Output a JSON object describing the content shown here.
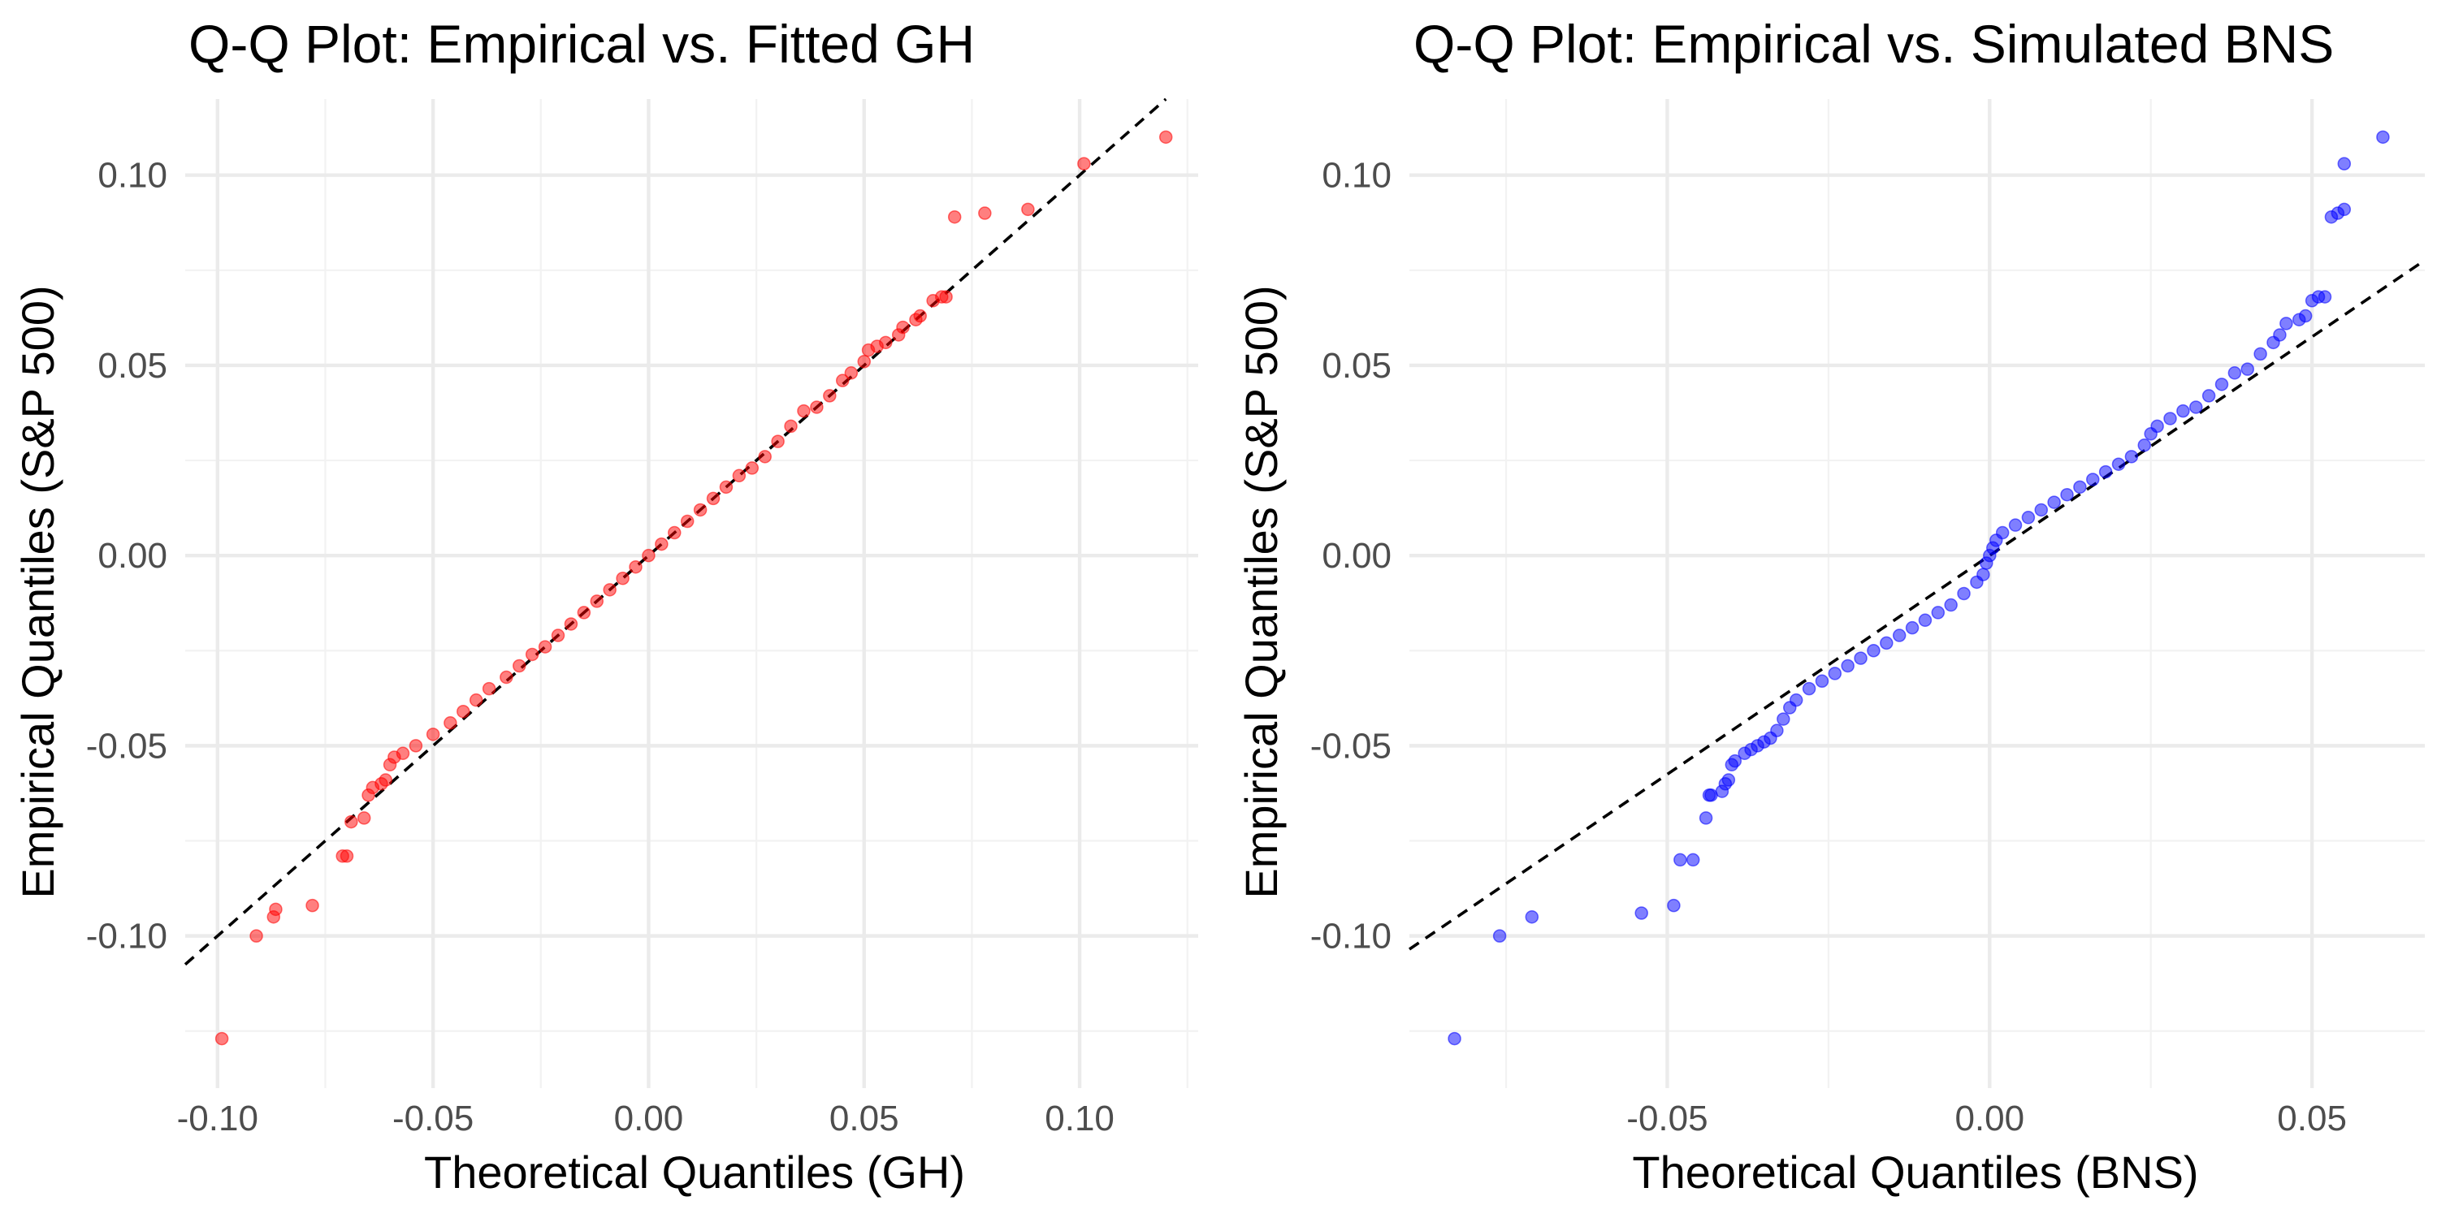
{
  "chart_data": [
    {
      "type": "scatter",
      "title": "Q-Q Plot: Empirical vs. Fitted GH",
      "xlabel": "Theoretical Quantiles (GH)",
      "ylabel": "Empirical Quantiles (S&P 500)",
      "xlim": [
        -0.1075,
        0.1275
      ],
      "ylim": [
        -0.14,
        0.12
      ],
      "x_ticks": [
        -0.1,
        -0.05,
        0.0,
        0.05,
        0.1
      ],
      "x_tick_labels": [
        "-0.10",
        "-0.05",
        "0.00",
        "0.05",
        "0.10"
      ],
      "y_ticks": [
        -0.1,
        -0.05,
        0.0,
        0.05,
        0.1
      ],
      "y_tick_labels": [
        "-0.10",
        "-0.05",
        "0.00",
        "0.05",
        "0.10"
      ],
      "grid": true,
      "point_color": "#ff0000",
      "reference_line": {
        "style": "dashed",
        "color": "#000000",
        "slope": 1.0,
        "intercept": 0.0
      },
      "series": [
        {
          "points": [
            [
              -0.099,
              -0.127
            ],
            [
              -0.091,
              -0.1
            ],
            [
              -0.087,
              -0.095
            ],
            [
              -0.0865,
              -0.093
            ],
            [
              -0.078,
              -0.092
            ],
            [
              -0.071,
              -0.079
            ],
            [
              -0.07,
              -0.079
            ],
            [
              -0.069,
              -0.07
            ],
            [
              -0.066,
              -0.069
            ],
            [
              -0.065,
              -0.063
            ],
            [
              -0.064,
              -0.061
            ],
            [
              -0.062,
              -0.06
            ],
            [
              -0.061,
              -0.059
            ],
            [
              -0.06,
              -0.055
            ],
            [
              -0.059,
              -0.053
            ],
            [
              -0.057,
              -0.052
            ],
            [
              -0.054,
              -0.05
            ],
            [
              -0.05,
              -0.047
            ],
            [
              -0.046,
              -0.044
            ],
            [
              -0.043,
              -0.041
            ],
            [
              -0.04,
              -0.038
            ],
            [
              -0.037,
              -0.035
            ],
            [
              -0.033,
              -0.032
            ],
            [
              -0.03,
              -0.029
            ],
            [
              -0.027,
              -0.026
            ],
            [
              -0.024,
              -0.024
            ],
            [
              -0.021,
              -0.021
            ],
            [
              -0.018,
              -0.018
            ],
            [
              -0.015,
              -0.015
            ],
            [
              -0.012,
              -0.012
            ],
            [
              -0.009,
              -0.009
            ],
            [
              -0.006,
              -0.006
            ],
            [
              -0.003,
              -0.003
            ],
            [
              0.0,
              0.0
            ],
            [
              0.003,
              0.003
            ],
            [
              0.006,
              0.006
            ],
            [
              0.009,
              0.009
            ],
            [
              0.012,
              0.012
            ],
            [
              0.015,
              0.015
            ],
            [
              0.018,
              0.018
            ],
            [
              0.021,
              0.021
            ],
            [
              0.024,
              0.023
            ],
            [
              0.027,
              0.026
            ],
            [
              0.03,
              0.03
            ],
            [
              0.033,
              0.034
            ],
            [
              0.036,
              0.038
            ],
            [
              0.039,
              0.039
            ],
            [
              0.042,
              0.042
            ],
            [
              0.045,
              0.046
            ],
            [
              0.047,
              0.048
            ],
            [
              0.05,
              0.051
            ],
            [
              0.051,
              0.054
            ],
            [
              0.053,
              0.055
            ],
            [
              0.055,
              0.056
            ],
            [
              0.058,
              0.058
            ],
            [
              0.059,
              0.06
            ],
            [
              0.062,
              0.062
            ],
            [
              0.063,
              0.063
            ],
            [
              0.066,
              0.067
            ],
            [
              0.068,
              0.068
            ],
            [
              0.069,
              0.068
            ],
            [
              0.071,
              0.089
            ],
            [
              0.078,
              0.09
            ],
            [
              0.088,
              0.091
            ],
            [
              0.101,
              0.103
            ],
            [
              0.12,
              0.11
            ]
          ]
        }
      ]
    },
    {
      "type": "scatter",
      "title": "Q-Q Plot: Empirical vs. Simulated BNS",
      "xlabel": "Theoretical Quantiles (BNS)",
      "ylabel": "Empirical Quantiles (S&P 500)",
      "xlim": [
        -0.09,
        0.0675
      ],
      "ylim": [
        -0.14,
        0.12
      ],
      "x_ticks": [
        -0.05,
        0.0,
        0.05
      ],
      "x_tick_labels": [
        "-0.05",
        "0.00",
        "0.05"
      ],
      "y_ticks": [
        -0.1,
        -0.05,
        0.0,
        0.05,
        0.1
      ],
      "y_tick_labels": [
        "-0.10",
        "-0.05",
        "0.00",
        "0.05",
        "0.10"
      ],
      "grid": true,
      "point_color": "#0000ff",
      "reference_line": {
        "style": "dashed",
        "color": "#000000",
        "slope": 1.15,
        "intercept": 0.0
      },
      "series": [
        {
          "points": [
            [
              -0.083,
              -0.127
            ],
            [
              -0.076,
              -0.1
            ],
            [
              -0.071,
              -0.095
            ],
            [
              -0.054,
              -0.094
            ],
            [
              -0.049,
              -0.092
            ],
            [
              -0.048,
              -0.08
            ],
            [
              -0.046,
              -0.08
            ],
            [
              -0.044,
              -0.069
            ],
            [
              -0.0435,
              -0.063
            ],
            [
              -0.0432,
              -0.063
            ],
            [
              -0.0415,
              -0.062
            ],
            [
              -0.041,
              -0.06
            ],
            [
              -0.0405,
              -0.059
            ],
            [
              -0.04,
              -0.055
            ],
            [
              -0.0395,
              -0.054
            ],
            [
              -0.038,
              -0.052
            ],
            [
              -0.037,
              -0.051
            ],
            [
              -0.036,
              -0.05
            ],
            [
              -0.035,
              -0.049
            ],
            [
              -0.034,
              -0.048
            ],
            [
              -0.033,
              -0.046
            ],
            [
              -0.032,
              -0.043
            ],
            [
              -0.031,
              -0.04
            ],
            [
              -0.03,
              -0.038
            ],
            [
              -0.028,
              -0.035
            ],
            [
              -0.026,
              -0.033
            ],
            [
              -0.024,
              -0.031
            ],
            [
              -0.022,
              -0.029
            ],
            [
              -0.02,
              -0.027
            ],
            [
              -0.018,
              -0.025
            ],
            [
              -0.016,
              -0.023
            ],
            [
              -0.014,
              -0.021
            ],
            [
              -0.012,
              -0.019
            ],
            [
              -0.01,
              -0.017
            ],
            [
              -0.008,
              -0.015
            ],
            [
              -0.006,
              -0.013
            ],
            [
              -0.004,
              -0.01
            ],
            [
              -0.002,
              -0.007
            ],
            [
              -0.001,
              -0.005
            ],
            [
              -0.0005,
              -0.002
            ],
            [
              0.0,
              0.0
            ],
            [
              0.0005,
              0.002
            ],
            [
              0.001,
              0.004
            ],
            [
              0.002,
              0.006
            ],
            [
              0.004,
              0.008
            ],
            [
              0.006,
              0.01
            ],
            [
              0.008,
              0.012
            ],
            [
              0.01,
              0.014
            ],
            [
              0.012,
              0.016
            ],
            [
              0.014,
              0.018
            ],
            [
              0.016,
              0.02
            ],
            [
              0.018,
              0.022
            ],
            [
              0.02,
              0.024
            ],
            [
              0.022,
              0.026
            ],
            [
              0.024,
              0.029
            ],
            [
              0.025,
              0.032
            ],
            [
              0.026,
              0.034
            ],
            [
              0.028,
              0.036
            ],
            [
              0.03,
              0.038
            ],
            [
              0.032,
              0.039
            ],
            [
              0.034,
              0.042
            ],
            [
              0.036,
              0.045
            ],
            [
              0.038,
              0.048
            ],
            [
              0.04,
              0.049
            ],
            [
              0.042,
              0.053
            ],
            [
              0.044,
              0.056
            ],
            [
              0.045,
              0.058
            ],
            [
              0.046,
              0.061
            ],
            [
              0.048,
              0.062
            ],
            [
              0.049,
              0.063
            ],
            [
              0.05,
              0.067
            ],
            [
              0.051,
              0.068
            ],
            [
              0.052,
              0.068
            ],
            [
              0.053,
              0.089
            ],
            [
              0.054,
              0.09
            ],
            [
              0.055,
              0.091
            ],
            [
              0.055,
              0.103
            ],
            [
              0.061,
              0.11
            ]
          ]
        }
      ]
    }
  ]
}
